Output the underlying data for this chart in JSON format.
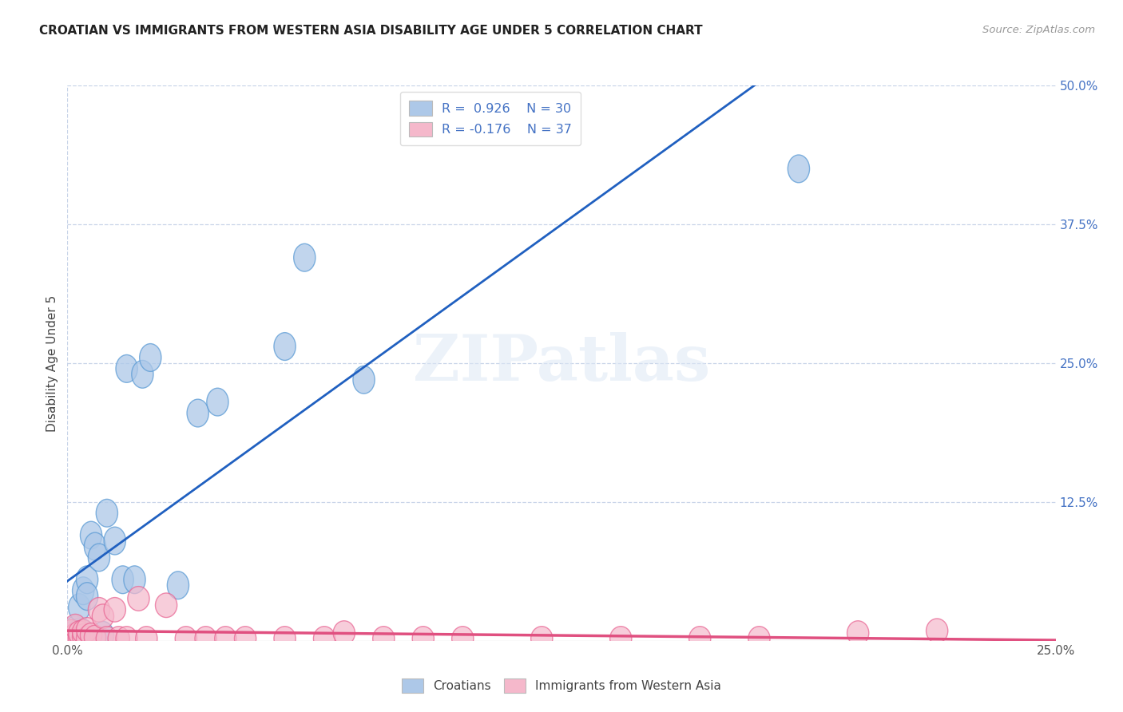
{
  "title": "CROATIAN VS IMMIGRANTS FROM WESTERN ASIA DISABILITY AGE UNDER 5 CORRELATION CHART",
  "source": "Source: ZipAtlas.com",
  "ylabel": "Disability Age Under 5",
  "legend_bottom": [
    "Croatians",
    "Immigrants from Western Asia"
  ],
  "blue_color": "#adc8e8",
  "pink_color": "#f5b8cb",
  "blue_edge_color": "#5b9bd5",
  "pink_edge_color": "#e86090",
  "blue_line_color": "#2060c0",
  "pink_line_color": "#e05080",
  "watermark": "ZIPatlas",
  "xmin": 0.0,
  "xmax": 0.25,
  "ymin": 0.0,
  "ymax": 0.5,
  "blue_points": [
    [
      0.001,
      0.003
    ],
    [
      0.001,
      0.005
    ],
    [
      0.002,
      0.004
    ],
    [
      0.002,
      0.007
    ],
    [
      0.002,
      0.01
    ],
    [
      0.003,
      0.005
    ],
    [
      0.003,
      0.008
    ],
    [
      0.003,
      0.03
    ],
    [
      0.004,
      0.007
    ],
    [
      0.004,
      0.045
    ],
    [
      0.005,
      0.055
    ],
    [
      0.005,
      0.04
    ],
    [
      0.006,
      0.095
    ],
    [
      0.007,
      0.085
    ],
    [
      0.008,
      0.075
    ],
    [
      0.009,
      0.005
    ],
    [
      0.01,
      0.115
    ],
    [
      0.012,
      0.09
    ],
    [
      0.014,
      0.055
    ],
    [
      0.015,
      0.245
    ],
    [
      0.017,
      0.055
    ],
    [
      0.019,
      0.24
    ],
    [
      0.021,
      0.255
    ],
    [
      0.028,
      0.05
    ],
    [
      0.033,
      0.205
    ],
    [
      0.038,
      0.215
    ],
    [
      0.055,
      0.265
    ],
    [
      0.06,
      0.345
    ],
    [
      0.075,
      0.235
    ],
    [
      0.185,
      0.425
    ]
  ],
  "pink_points": [
    [
      0.001,
      0.002
    ],
    [
      0.001,
      0.008
    ],
    [
      0.002,
      0.005
    ],
    [
      0.002,
      0.013
    ],
    [
      0.003,
      0.003
    ],
    [
      0.003,
      0.007
    ],
    [
      0.004,
      0.004
    ],
    [
      0.004,
      0.008
    ],
    [
      0.005,
      0.002
    ],
    [
      0.005,
      0.01
    ],
    [
      0.006,
      0.005
    ],
    [
      0.007,
      0.003
    ],
    [
      0.008,
      0.028
    ],
    [
      0.009,
      0.022
    ],
    [
      0.01,
      0.002
    ],
    [
      0.012,
      0.028
    ],
    [
      0.013,
      0.002
    ],
    [
      0.015,
      0.002
    ],
    [
      0.018,
      0.038
    ],
    [
      0.02,
      0.002
    ],
    [
      0.025,
      0.032
    ],
    [
      0.03,
      0.002
    ],
    [
      0.035,
      0.002
    ],
    [
      0.04,
      0.002
    ],
    [
      0.045,
      0.002
    ],
    [
      0.055,
      0.002
    ],
    [
      0.065,
      0.002
    ],
    [
      0.07,
      0.007
    ],
    [
      0.08,
      0.002
    ],
    [
      0.09,
      0.002
    ],
    [
      0.1,
      0.002
    ],
    [
      0.12,
      0.002
    ],
    [
      0.14,
      0.002
    ],
    [
      0.16,
      0.002
    ],
    [
      0.175,
      0.002
    ],
    [
      0.2,
      0.007
    ],
    [
      0.22,
      0.009
    ]
  ],
  "background_color": "#ffffff",
  "grid_color": "#c8d4e8"
}
